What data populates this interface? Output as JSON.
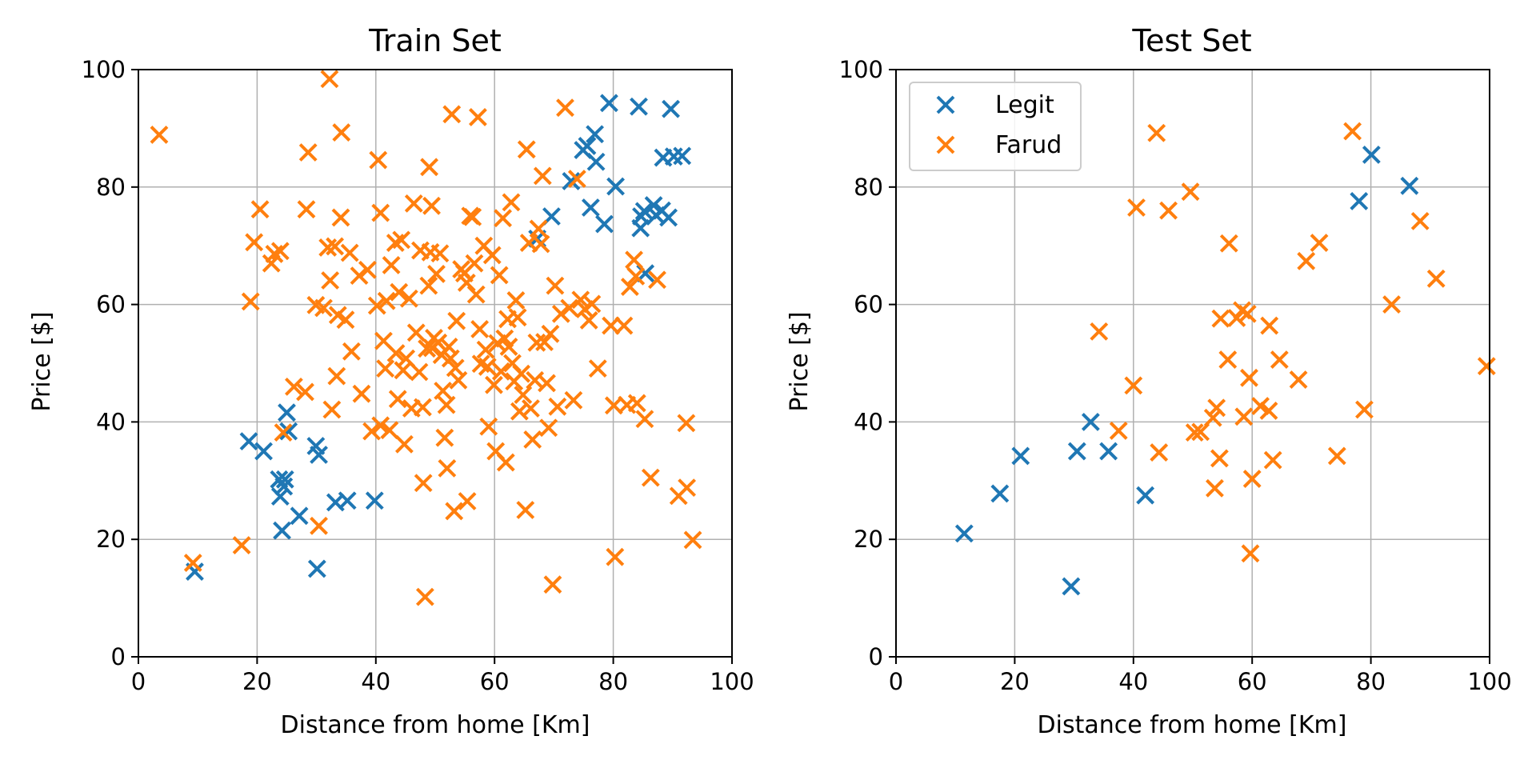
{
  "colors": {
    "legit": "#1f77b4",
    "fraud": "#ff7f0e",
    "grid": "#b0b0b0",
    "axes": "#000000"
  },
  "legend": {
    "items": [
      {
        "label": "Legit",
        "series": "legit"
      },
      {
        "label": "Farud",
        "series": "fraud"
      }
    ],
    "placement": "upper-left",
    "panel": 1
  },
  "chart_data": [
    {
      "type": "scatter",
      "title": "Train Set",
      "xlabel": "Distance from home [Km]",
      "ylabel": "Price [$]",
      "xlim": [
        0,
        100
      ],
      "ylim": [
        0,
        100
      ],
      "xticks": [
        "0",
        "20",
        "40",
        "60",
        "80",
        "100"
      ],
      "yticks": [
        "0",
        "20",
        "40",
        "60",
        "80",
        "100"
      ],
      "grid": true,
      "marker": "x",
      "series": [
        {
          "name": "Legit",
          "key": "legit",
          "points": [
            [
              9.5,
              14.5
            ],
            [
              18.6,
              36.7
            ],
            [
              21.1,
              35
            ],
            [
              23.7,
              30.2
            ],
            [
              24.5,
              29
            ],
            [
              23.9,
              27.3
            ],
            [
              24.7,
              30.2
            ],
            [
              24.2,
              21.5
            ],
            [
              25,
              41.6
            ],
            [
              25.3,
              38.4
            ],
            [
              27.1,
              24
            ],
            [
              29.9,
              35.9
            ],
            [
              30.4,
              34.4
            ],
            [
              30.1,
              15
            ],
            [
              33.2,
              26.3
            ],
            [
              35.2,
              26.6
            ],
            [
              39.8,
              26.6
            ],
            [
              67.2,
              71.2
            ],
            [
              69.6,
              75
            ],
            [
              72.9,
              81
            ],
            [
              74.9,
              86.3
            ],
            [
              75.6,
              87
            ],
            [
              76.9,
              89
            ],
            [
              77.1,
              84.3
            ],
            [
              76.2,
              76.5
            ],
            [
              78.5,
              73.7
            ],
            [
              79.3,
              94.3
            ],
            [
              80.4,
              80.1
            ],
            [
              84.3,
              93.7
            ],
            [
              84.7,
              75
            ],
            [
              84.6,
              73
            ],
            [
              85.2,
              75.9
            ],
            [
              85.4,
              65.3
            ],
            [
              86.8,
              76.9
            ],
            [
              87.2,
              75.2
            ],
            [
              88.4,
              85
            ],
            [
              89.3,
              74.8
            ],
            [
              89.7,
              93.3
            ],
            [
              90.2,
              85.2
            ],
            [
              91.6,
              85.3
            ],
            [
              88.2,
              76
            ]
          ]
        },
        {
          "name": "Farud",
          "key": "fraud",
          "points": [
            [
              3.5,
              88.9
            ],
            [
              9.2,
              16
            ],
            [
              17.4,
              19
            ],
            [
              18.9,
              60.5
            ],
            [
              19.5,
              70.6
            ],
            [
              20.5,
              76.2
            ],
            [
              22.4,
              67
            ],
            [
              22.9,
              68.6
            ],
            [
              23.9,
              69.1
            ],
            [
              24.4,
              38.2
            ],
            [
              26.2,
              46
            ],
            [
              28.1,
              45.1
            ],
            [
              28.3,
              76.2
            ],
            [
              28.6,
              85.9
            ],
            [
              29.9,
              59.9
            ],
            [
              30.4,
              22.3
            ],
            [
              31.2,
              59.4
            ],
            [
              31.9,
              69.7
            ],
            [
              32.3,
              64.1
            ],
            [
              32.2,
              98.4
            ],
            [
              32.6,
              42.1
            ],
            [
              33.1,
              69.9
            ],
            [
              33.4,
              47.8
            ],
            [
              33.6,
              58.2
            ],
            [
              34.1,
              74.8
            ],
            [
              34.2,
              89.3
            ],
            [
              34.9,
              57.4
            ],
            [
              35.6,
              68.8
            ],
            [
              35.9,
              52
            ],
            [
              37.2,
              64.9
            ],
            [
              37.6,
              44.8
            ],
            [
              38.6,
              65.9
            ],
            [
              39.3,
              38.4
            ],
            [
              40.4,
              84.6
            ],
            [
              40.2,
              59.8
            ],
            [
              40.8,
              39.4
            ],
            [
              40.8,
              75.6
            ],
            [
              41.3,
              53.8
            ],
            [
              41.6,
              49.1
            ],
            [
              41.8,
              60.6
            ],
            [
              42.3,
              38.6
            ],
            [
              42.6,
              66.7
            ],
            [
              43.3,
              70.5
            ],
            [
              43.4,
              51.7
            ],
            [
              43.7,
              43.9
            ],
            [
              43.9,
              62.1
            ],
            [
              44.3,
              71
            ],
            [
              44.6,
              48.8
            ],
            [
              44.8,
              36.2
            ],
            [
              45.1,
              50.8
            ],
            [
              45.6,
              61
            ],
            [
              46,
              42.3
            ],
            [
              46.4,
              77.2
            ],
            [
              46.8,
              55.2
            ],
            [
              47.3,
              48.5
            ],
            [
              47.5,
              69.2
            ],
            [
              47.9,
              42.5
            ],
            [
              48,
              29.6
            ],
            [
              48.3,
              10.2
            ],
            [
              48.6,
              52.5
            ],
            [
              48.9,
              63.2
            ],
            [
              49,
              83.4
            ],
            [
              49.2,
              68.9
            ],
            [
              49.4,
              76.8
            ],
            [
              49.5,
              52.6
            ],
            [
              49.8,
              54.3
            ],
            [
              50.2,
              65.2
            ],
            [
              50.5,
              53.5
            ],
            [
              50.8,
              68.7
            ],
            [
              51.1,
              51.4
            ],
            [
              51.3,
              45.3
            ],
            [
              51.6,
              37.3
            ],
            [
              51.9,
              42.9
            ],
            [
              52,
              32.1
            ],
            [
              52.3,
              52.8
            ],
            [
              52.6,
              50.8
            ],
            [
              52.8,
              92.4
            ],
            [
              53.2,
              24.8
            ],
            [
              53.4,
              49.2
            ],
            [
              53.6,
              57.2
            ],
            [
              53.9,
              47.1
            ],
            [
              54.4,
              66
            ],
            [
              54.9,
              65.3
            ],
            [
              55.3,
              63.7
            ],
            [
              55.4,
              26.5
            ],
            [
              55.9,
              75.1
            ],
            [
              56.3,
              74.9
            ],
            [
              56.6,
              67
            ],
            [
              56.9,
              61.7
            ],
            [
              57.2,
              91.9
            ],
            [
              57.5,
              55.8
            ],
            [
              57.7,
              49.9
            ],
            [
              58.2,
              70
            ],
            [
              58.5,
              52.3
            ],
            [
              58.8,
              49.4
            ],
            [
              59,
              39.2
            ],
            [
              59.6,
              68.4
            ],
            [
              59.9,
              46.3
            ],
            [
              60.2,
              35
            ],
            [
              60.5,
              53.4
            ],
            [
              60.8,
              65
            ],
            [
              61.1,
              48.6
            ],
            [
              61.4,
              74.7
            ],
            [
              61.7,
              54.2
            ],
            [
              61.9,
              33.1
            ],
            [
              62.2,
              57.5
            ],
            [
              62.4,
              52.8
            ],
            [
              62.8,
              77.4
            ],
            [
              63,
              50
            ],
            [
              63.3,
              46.9
            ],
            [
              63.6,
              60.7
            ],
            [
              63.9,
              57.8
            ],
            [
              64.2,
              41.8
            ],
            [
              64.5,
              48.2
            ],
            [
              64.8,
              44.6
            ],
            [
              65.2,
              25
            ],
            [
              65.4,
              86.4
            ],
            [
              65.8,
              70.5
            ],
            [
              66.1,
              42.3
            ],
            [
              66.4,
              37
            ],
            [
              66.8,
              47.1
            ],
            [
              67.1,
              53.5
            ],
            [
              67.4,
              72.9
            ],
            [
              67.8,
              70.3
            ],
            [
              68.1,
              81.9
            ],
            [
              68.4,
              53.6
            ],
            [
              68.8,
              46.6
            ],
            [
              69.1,
              39
            ],
            [
              69.4,
              55
            ],
            [
              69.8,
              12.3
            ],
            [
              70.2,
              63.2
            ],
            [
              70.6,
              42.6
            ],
            [
              71.2,
              58.4
            ],
            [
              71.9,
              93.5
            ],
            [
              72.6,
              59.4
            ],
            [
              73.3,
              43.7
            ],
            [
              73.9,
              81.4
            ],
            [
              74.5,
              60.8
            ],
            [
              75.2,
              59.2
            ],
            [
              75.9,
              57.3
            ],
            [
              76.4,
              60.1
            ],
            [
              77.4,
              49.1
            ],
            [
              79.6,
              56.4
            ],
            [
              80.1,
              42.8
            ],
            [
              80.3,
              17
            ],
            [
              81.8,
              56.4
            ],
            [
              82.3,
              42.9
            ],
            [
              82.8,
              63
            ],
            [
              83.5,
              67.6
            ],
            [
              83.8,
              64.8
            ],
            [
              84,
              43.2
            ],
            [
              85.3,
              40.5
            ],
            [
              86.3,
              30.5
            ],
            [
              87.4,
              64.2
            ],
            [
              91,
              27.4
            ],
            [
              92.3,
              39.8
            ],
            [
              92.4,
              28.8
            ],
            [
              93.4,
              19.9
            ]
          ]
        }
      ]
    },
    {
      "type": "scatter",
      "title": "Test Set",
      "xlabel": "Distance from home [Km]",
      "ylabel": "Price [$]",
      "xlim": [
        0,
        100
      ],
      "ylim": [
        0,
        100
      ],
      "xticks": [
        "0",
        "20",
        "40",
        "60",
        "80",
        "100"
      ],
      "yticks": [
        "0",
        "20",
        "40",
        "60",
        "80",
        "100"
      ],
      "grid": true,
      "marker": "x",
      "series": [
        {
          "name": "Legit",
          "key": "legit",
          "points": [
            [
              11.5,
              21
            ],
            [
              17.5,
              27.8
            ],
            [
              21,
              34.2
            ],
            [
              29.5,
              12
            ],
            [
              30.5,
              35
            ],
            [
              32.8,
              40
            ],
            [
              35.8,
              35
            ],
            [
              42,
              27.5
            ],
            [
              78,
              77.6
            ],
            [
              80.1,
              85.5
            ],
            [
              86.5,
              80.2
            ]
          ]
        },
        {
          "name": "Farud",
          "key": "fraud",
          "points": [
            [
              37.5,
              38.5
            ],
            [
              34.2,
              55.4
            ],
            [
              40,
              46.2
            ],
            [
              40.5,
              76.5
            ],
            [
              43.9,
              89.2
            ],
            [
              44.3,
              34.8
            ],
            [
              45.9,
              76
            ],
            [
              49.6,
              79.2
            ],
            [
              50.3,
              38.2
            ],
            [
              51.3,
              38.3
            ],
            [
              53.4,
              40.7
            ],
            [
              53.7,
              28.7
            ],
            [
              54,
              42.4
            ],
            [
              54.5,
              33.8
            ],
            [
              54.7,
              57.6
            ],
            [
              56.1,
              70.4
            ],
            [
              55.9,
              50.6
            ],
            [
              57.4,
              57.7
            ],
            [
              58.3,
              59
            ],
            [
              59.2,
              58.4
            ],
            [
              59.5,
              47.5
            ],
            [
              58.6,
              40.9
            ],
            [
              59.7,
              17.6
            ],
            [
              60,
              30.3
            ],
            [
              61.4,
              42.7
            ],
            [
              62.8,
              41.9
            ],
            [
              62.9,
              56.4
            ],
            [
              63.5,
              33.5
            ],
            [
              64.6,
              50.6
            ],
            [
              67.8,
              47.2
            ],
            [
              69.1,
              67.4
            ],
            [
              71.3,
              70.5
            ],
            [
              74.3,
              34.2
            ],
            [
              76.9,
              89.5
            ],
            [
              78.9,
              42.1
            ],
            [
              83.5,
              60
            ],
            [
              88.3,
              74.2
            ],
            [
              91,
              64.4
            ],
            [
              99.5,
              49.5
            ]
          ]
        }
      ]
    }
  ]
}
